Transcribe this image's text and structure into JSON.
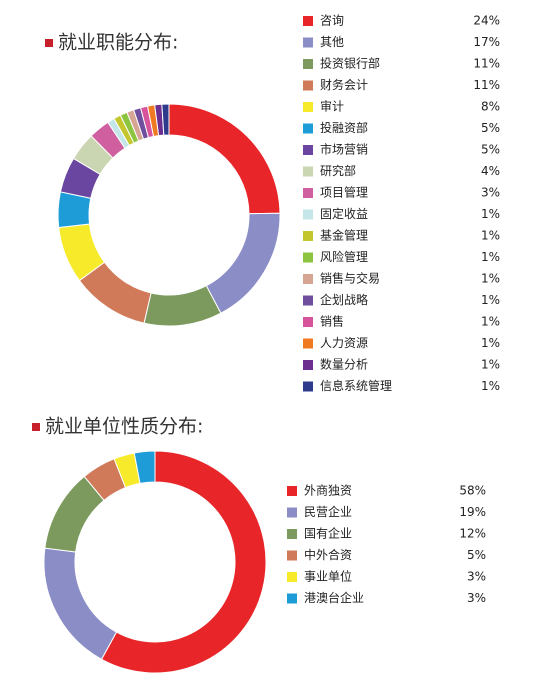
{
  "chart_data": [
    {
      "type": "pie",
      "title": "就业职能分布:",
      "categories": [
        "咨询",
        "其他",
        "投资银行部",
        "财务会计",
        "审计",
        "投融资部",
        "市场营销",
        "研究部",
        "项目管理",
        "固定收益",
        "基金管理",
        "风险管理",
        "销售与交易",
        "企划战略",
        "销售",
        "人力资源",
        "数量分析",
        "信息系统管理"
      ],
      "values": [
        24,
        17,
        11,
        11,
        8,
        5,
        5,
        4,
        3,
        1,
        1,
        1,
        1,
        1,
        1,
        1,
        1,
        1
      ],
      "value_labels": [
        "24%",
        "17%",
        "11%",
        "11%",
        "8%",
        "5%",
        "5%",
        "4%",
        "3%",
        "1%",
        "1%",
        "1%",
        "1%",
        "1%",
        "1%",
        "1%",
        "1%",
        "1%"
      ],
      "colors": [
        "#e8262a",
        "#8b8dc6",
        "#7c9a5e",
        "#d07a5a",
        "#f7ea2b",
        "#1e9cd8",
        "#6a46a0",
        "#c9d6b1",
        "#cf5f9e",
        "#c5e6e8",
        "#c4c62d",
        "#8dc43f",
        "#d7a593",
        "#6f4e9d",
        "#d7539c",
        "#f07a22",
        "#6c2f8f",
        "#2e3a8c"
      ]
    },
    {
      "type": "pie",
      "title": "就业单位性质分布:",
      "categories": [
        "外商独资",
        "民营企业",
        "国有企业",
        "中外合资",
        "事业单位",
        "港澳台企业"
      ],
      "values": [
        58,
        19,
        12,
        5,
        3,
        3
      ],
      "value_labels": [
        "58%",
        "19%",
        "12%",
        "5%",
        "3%",
        "3%"
      ],
      "colors": [
        "#e8262a",
        "#8b8dc6",
        "#7c9a5e",
        "#d07a5a",
        "#f7ea2b",
        "#1e9cd8"
      ]
    }
  ]
}
